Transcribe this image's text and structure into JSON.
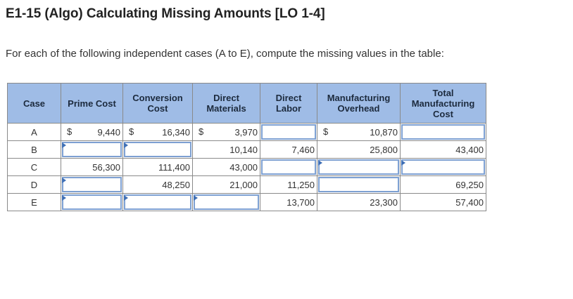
{
  "title": "E1-15 (Algo) Calculating Missing Amounts [LO 1-4]",
  "instructions": "For each of the following independent cases (A to E), compute the missing values in the table:",
  "table": {
    "headers": [
      "Case",
      "Prime Cost",
      "Conversion Cost",
      "Direct Materials",
      "Direct Labor",
      "Manufacturing Overhead",
      "Total Manufacturing Cost"
    ],
    "rows": [
      {
        "case": "A",
        "prime": "9,440",
        "prime_dollar": "$",
        "conversion": "16,340",
        "conversion_dollar": "$",
        "materials": "3,970",
        "materials_dollar": "$",
        "labor": "",
        "overhead": "10,870",
        "overhead_dollar": "$",
        "total": ""
      },
      {
        "case": "B",
        "prime": "",
        "conversion": "",
        "materials": "10,140",
        "labor": "7,460",
        "overhead": "25,800",
        "total": "43,400"
      },
      {
        "case": "C",
        "prime": "56,300",
        "conversion": "111,400",
        "materials": "43,000",
        "labor": "",
        "overhead": "",
        "total": ""
      },
      {
        "case": "D",
        "prime": "",
        "conversion": "48,250",
        "materials": "21,000",
        "labor": "11,250",
        "overhead": "",
        "total": "69,250"
      },
      {
        "case": "E",
        "prime": "",
        "conversion": "",
        "materials": "",
        "labor": "13,700",
        "overhead": "23,300",
        "total": "57,400"
      }
    ]
  },
  "colors": {
    "header_bg": "#9fbce6",
    "input_border": "#7da0d2",
    "flag": "#3f6fb5"
  }
}
